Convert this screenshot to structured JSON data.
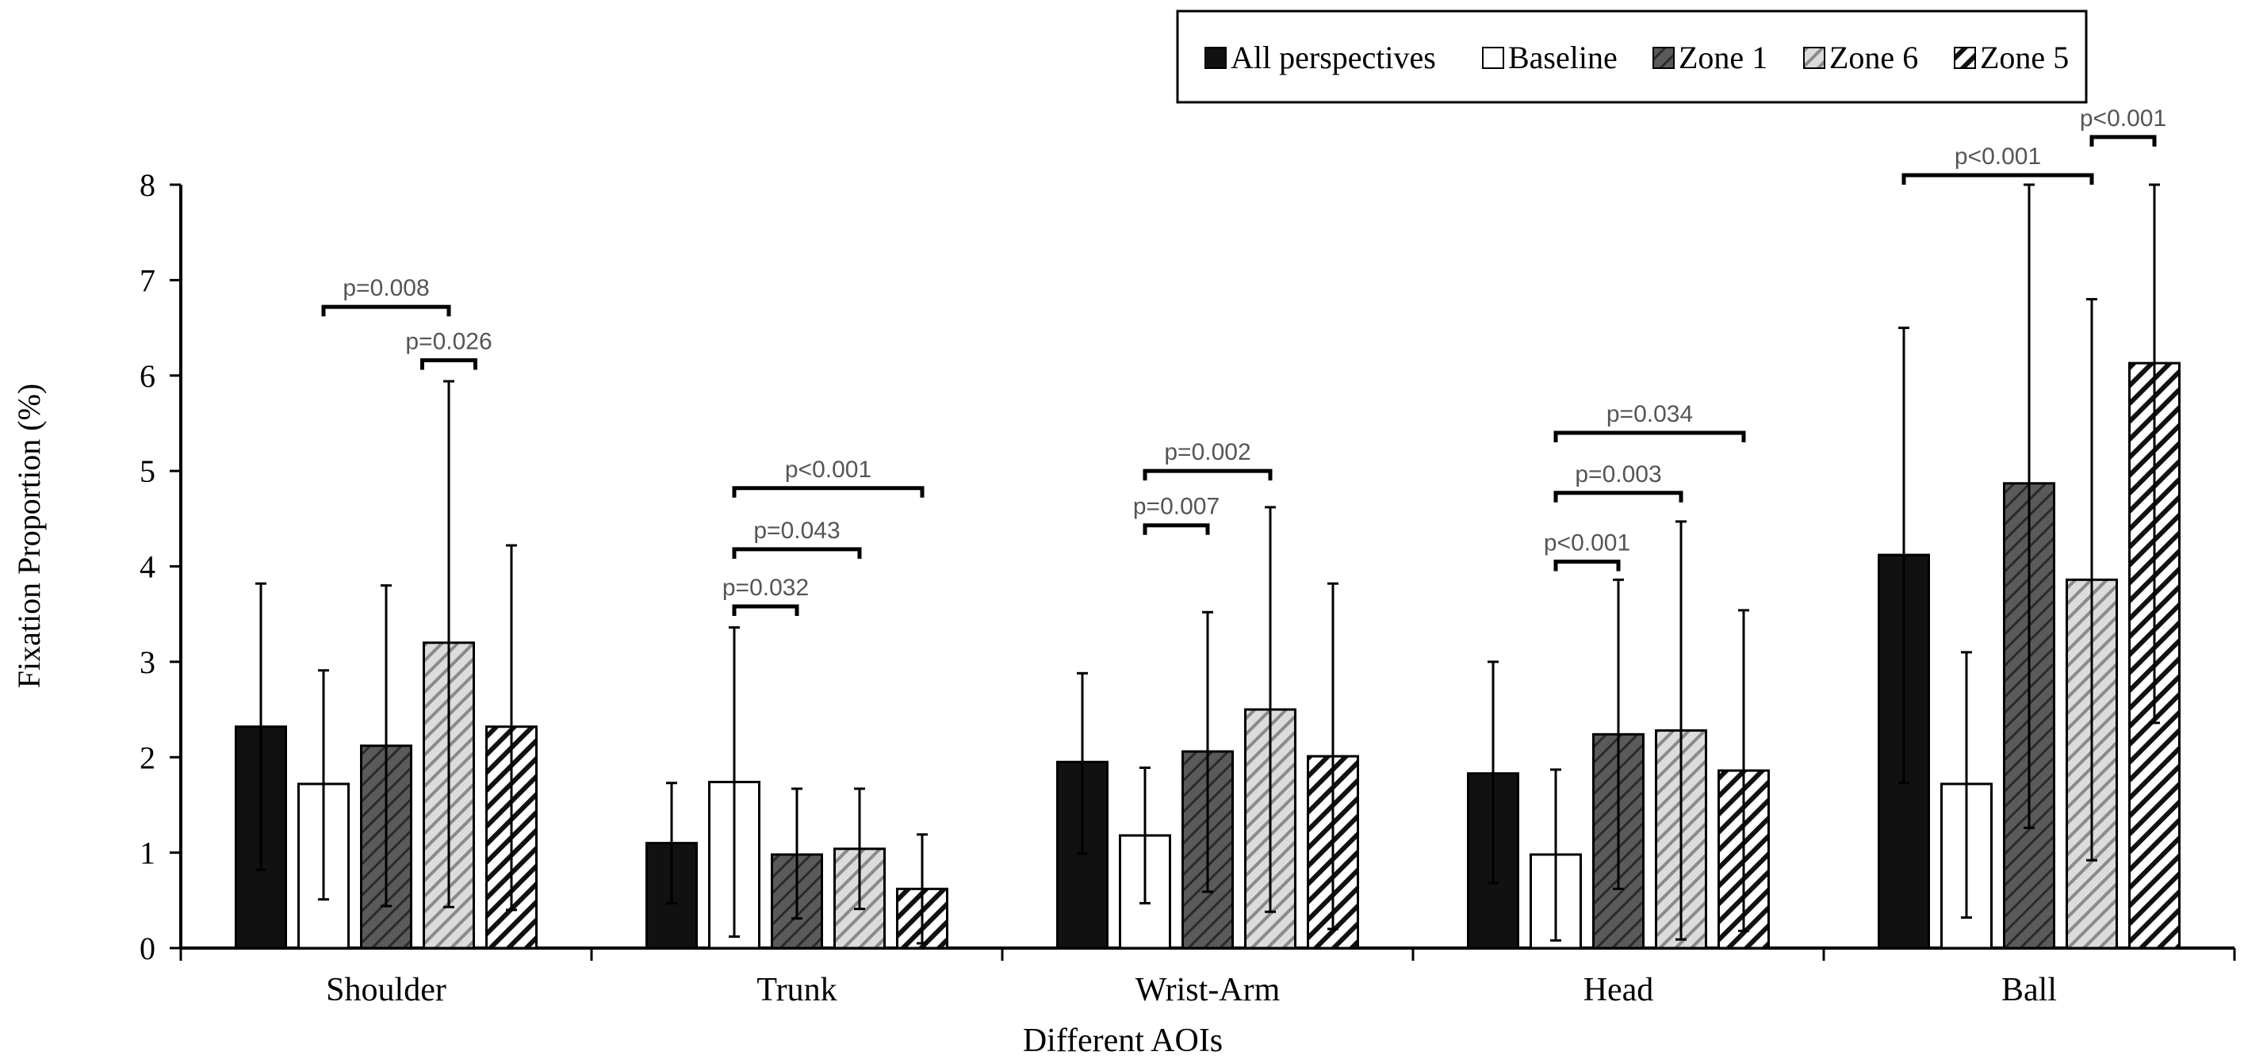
{
  "chart_data": {
    "type": "bar",
    "xlabel": "Different AOIs",
    "ylabel": "Fixation Proportion (%)",
    "ylim": [
      0,
      8
    ],
    "yticks": [
      0,
      1,
      2,
      3,
      4,
      5,
      6,
      7,
      8
    ],
    "grid": false,
    "legend_position": "top-right",
    "categories": [
      "Shoulder",
      "Trunk",
      "Wrist-Arm",
      "Head",
      "Ball"
    ],
    "series": [
      {
        "name": "All perspectives",
        "pattern": "solid-black",
        "values": [
          2.32,
          1.1,
          1.95,
          1.83,
          4.12
        ],
        "error_low": [
          0.82,
          0.47,
          0.99,
          0.68,
          1.73
        ],
        "error_high": [
          3.82,
          1.73,
          2.88,
          3.0,
          6.5
        ]
      },
      {
        "name": "Baseline",
        "pattern": "white",
        "values": [
          1.72,
          1.74,
          1.18,
          0.98,
          1.72
        ],
        "error_low": [
          0.51,
          0.12,
          0.47,
          0.08,
          0.32
        ],
        "error_high": [
          2.91,
          3.36,
          1.89,
          1.87,
          3.1
        ]
      },
      {
        "name": "Zone 1",
        "pattern": "dark-hatch",
        "values": [
          2.12,
          0.98,
          2.06,
          2.24,
          4.87
        ],
        "error_low": [
          0.44,
          0.31,
          0.59,
          0.62,
          1.26
        ],
        "error_high": [
          3.8,
          1.67,
          3.52,
          3.86,
          8.0
        ]
      },
      {
        "name": "Zone 6",
        "pattern": "light-hatch",
        "values": [
          3.2,
          1.04,
          2.5,
          2.28,
          3.86
        ],
        "error_low": [
          0.43,
          0.41,
          0.38,
          0.09,
          0.92
        ],
        "error_high": [
          5.94,
          1.67,
          4.62,
          4.47,
          6.8
        ]
      },
      {
        "name": "Zone 5",
        "pattern": "bold-hatch",
        "values": [
          2.32,
          0.62,
          2.01,
          1.86,
          6.13
        ],
        "error_low": [
          0.4,
          0.05,
          0.2,
          0.18,
          2.36
        ],
        "error_high": [
          4.22,
          1.19,
          3.82,
          3.54,
          8.0
        ]
      }
    ],
    "annotations": [
      {
        "label": "p=0.008",
        "category": "Shoulder",
        "from": "Baseline",
        "to": "Zone 6",
        "level": 6.72
      },
      {
        "label": "p=0.026",
        "category": "Shoulder",
        "from": "Zone 6",
        "to": "Zone 6",
        "level": 6.16
      },
      {
        "label": "p<0.001",
        "category": "Trunk",
        "from": "Baseline",
        "to": "Zone 5",
        "level": 4.82
      },
      {
        "label": "p=0.043",
        "category": "Trunk",
        "from": "Baseline",
        "to": "Zone 6",
        "level": 4.18
      },
      {
        "label": "p=0.032",
        "category": "Trunk",
        "from": "Baseline",
        "to": "Zone 1",
        "level": 3.58
      },
      {
        "label": "p=0.002",
        "category": "Wrist-Arm",
        "from": "Baseline",
        "to": "Zone 6",
        "level": 5.0
      },
      {
        "label": "p=0.007",
        "category": "Wrist-Arm",
        "from": "Baseline",
        "to": "Zone 1",
        "level": 4.43
      },
      {
        "label": "p=0.034",
        "category": "Head",
        "from": "Baseline",
        "to": "Zone 5",
        "level": 5.4
      },
      {
        "label": "p=0.003",
        "category": "Head",
        "from": "Baseline",
        "to": "Zone 6",
        "level": 4.77
      },
      {
        "label": "p<0.001",
        "category": "Head",
        "from": "Baseline",
        "to": "Zone 1",
        "level": 4.05
      },
      {
        "label": "p<0.001",
        "category": "Ball",
        "from": "All perspectives",
        "to": "Zone 6",
        "level": 8.1
      },
      {
        "label": "p<0.001",
        "category": "Ball",
        "from": "Zone 6",
        "to": "Zone 5",
        "level": 8.5
      }
    ]
  }
}
